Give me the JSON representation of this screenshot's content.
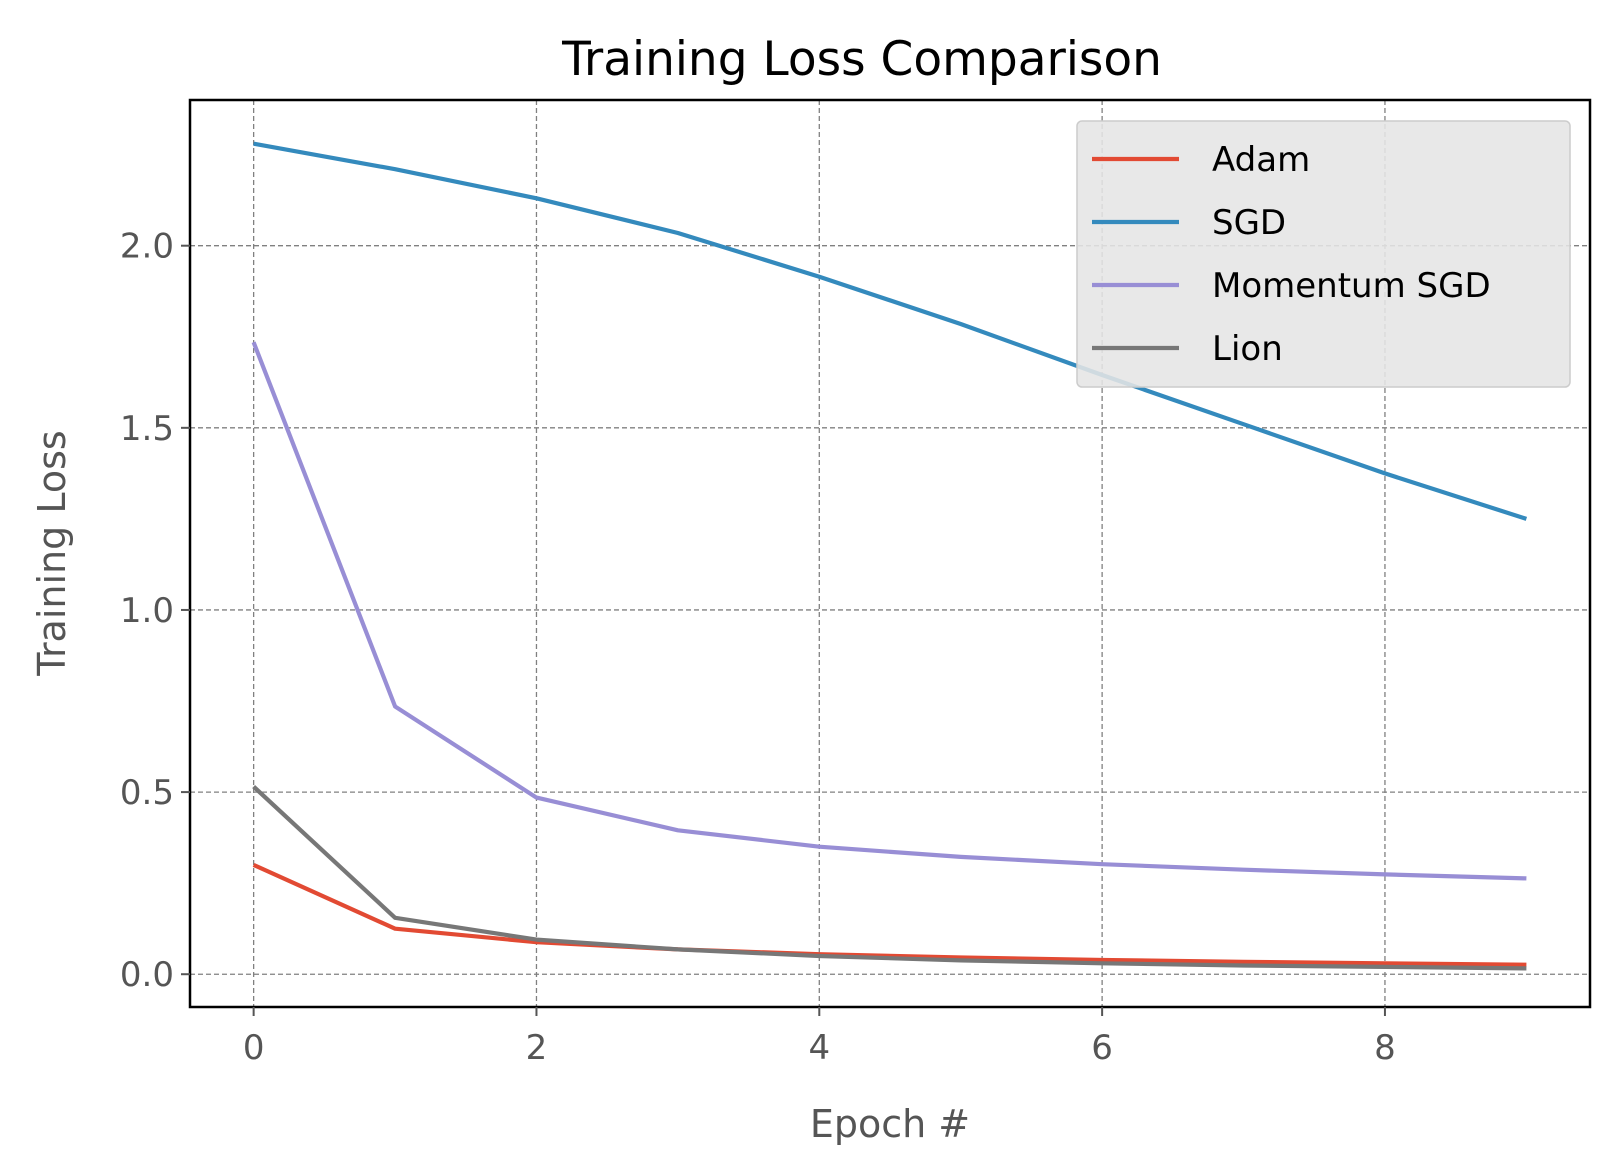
{
  "chart_data": {
    "type": "line",
    "title": "Training Loss Comparison",
    "xlabel": "Epoch #",
    "ylabel": "Training Loss",
    "xlim": [
      -0.45,
      9.45
    ],
    "ylim": [
      -0.09,
      2.4
    ],
    "x_ticks": [
      0,
      2,
      4,
      6,
      8
    ],
    "y_ticks": [
      0.0,
      0.5,
      1.0,
      1.5,
      2.0
    ],
    "x_tick_labels": [
      "0",
      "2",
      "4",
      "6",
      "8"
    ],
    "y_tick_labels": [
      "0.0",
      "0.5",
      "1.0",
      "1.5",
      "2.0"
    ],
    "grid": true,
    "legend_position": "top-right",
    "x": [
      0,
      1,
      2,
      3,
      4,
      5,
      6,
      7,
      8,
      9
    ],
    "series": [
      {
        "name": "Adam",
        "color": "#E24A33",
        "values": [
          0.3,
          0.125,
          0.088,
          0.068,
          0.055,
          0.046,
          0.039,
          0.034,
          0.03,
          0.026
        ]
      },
      {
        "name": "SGD",
        "color": "#348ABD",
        "values": [
          2.28,
          2.21,
          2.13,
          2.035,
          1.915,
          1.785,
          1.645,
          1.51,
          1.375,
          1.25
        ]
      },
      {
        "name": "Momentum SGD",
        "color": "#988ED5",
        "values": [
          1.735,
          0.735,
          0.485,
          0.395,
          0.35,
          0.322,
          0.302,
          0.287,
          0.274,
          0.263
        ]
      },
      {
        "name": "Lion",
        "color": "#777777",
        "values": [
          0.515,
          0.155,
          0.095,
          0.068,
          0.05,
          0.038,
          0.03,
          0.024,
          0.02,
          0.016
        ]
      }
    ]
  }
}
